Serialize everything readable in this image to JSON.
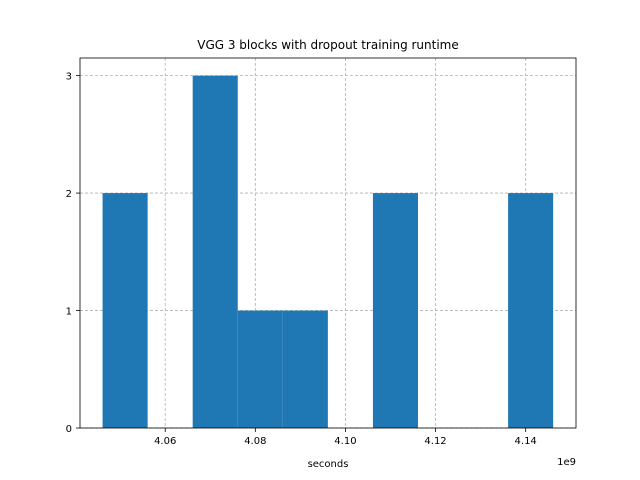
{
  "chart_data": {
    "type": "bar",
    "title": "VGG 3 blocks with dropout training runtime",
    "xlabel": "seconds",
    "ylabel": "",
    "x_offset_label": "1e9",
    "x_scale": 1000000000,
    "xlim": [
      4.04109,
      4.15117
    ],
    "ylim": [
      0,
      3.15
    ],
    "grid": true,
    "color": "#1f77b4",
    "x_ticks": [
      4.06,
      4.08,
      4.1,
      4.12,
      4.14
    ],
    "x_tick_labels": [
      "4.06",
      "4.08",
      "4.10",
      "4.12",
      "4.14"
    ],
    "y_ticks": [
      0,
      1,
      2,
      3
    ],
    "y_tick_labels": [
      "0",
      "1",
      "2",
      "3"
    ],
    "bins": [
      {
        "x0": 4.0461,
        "x1": 4.0561,
        "count": 2
      },
      {
        "x0": 4.0561,
        "x1": 4.0661,
        "count": 0
      },
      {
        "x0": 4.0661,
        "x1": 4.0761,
        "count": 3
      },
      {
        "x0": 4.0761,
        "x1": 4.0861,
        "count": 1
      },
      {
        "x0": 4.0861,
        "x1": 4.0961,
        "count": 1
      },
      {
        "x0": 4.0961,
        "x1": 4.1061,
        "count": 0
      },
      {
        "x0": 4.1061,
        "x1": 4.1161,
        "count": 2
      },
      {
        "x0": 4.1161,
        "x1": 4.1261,
        "count": 0
      },
      {
        "x0": 4.1261,
        "x1": 4.1361,
        "count": 0
      },
      {
        "x0": 4.1361,
        "x1": 4.1461,
        "count": 2
      }
    ]
  }
}
